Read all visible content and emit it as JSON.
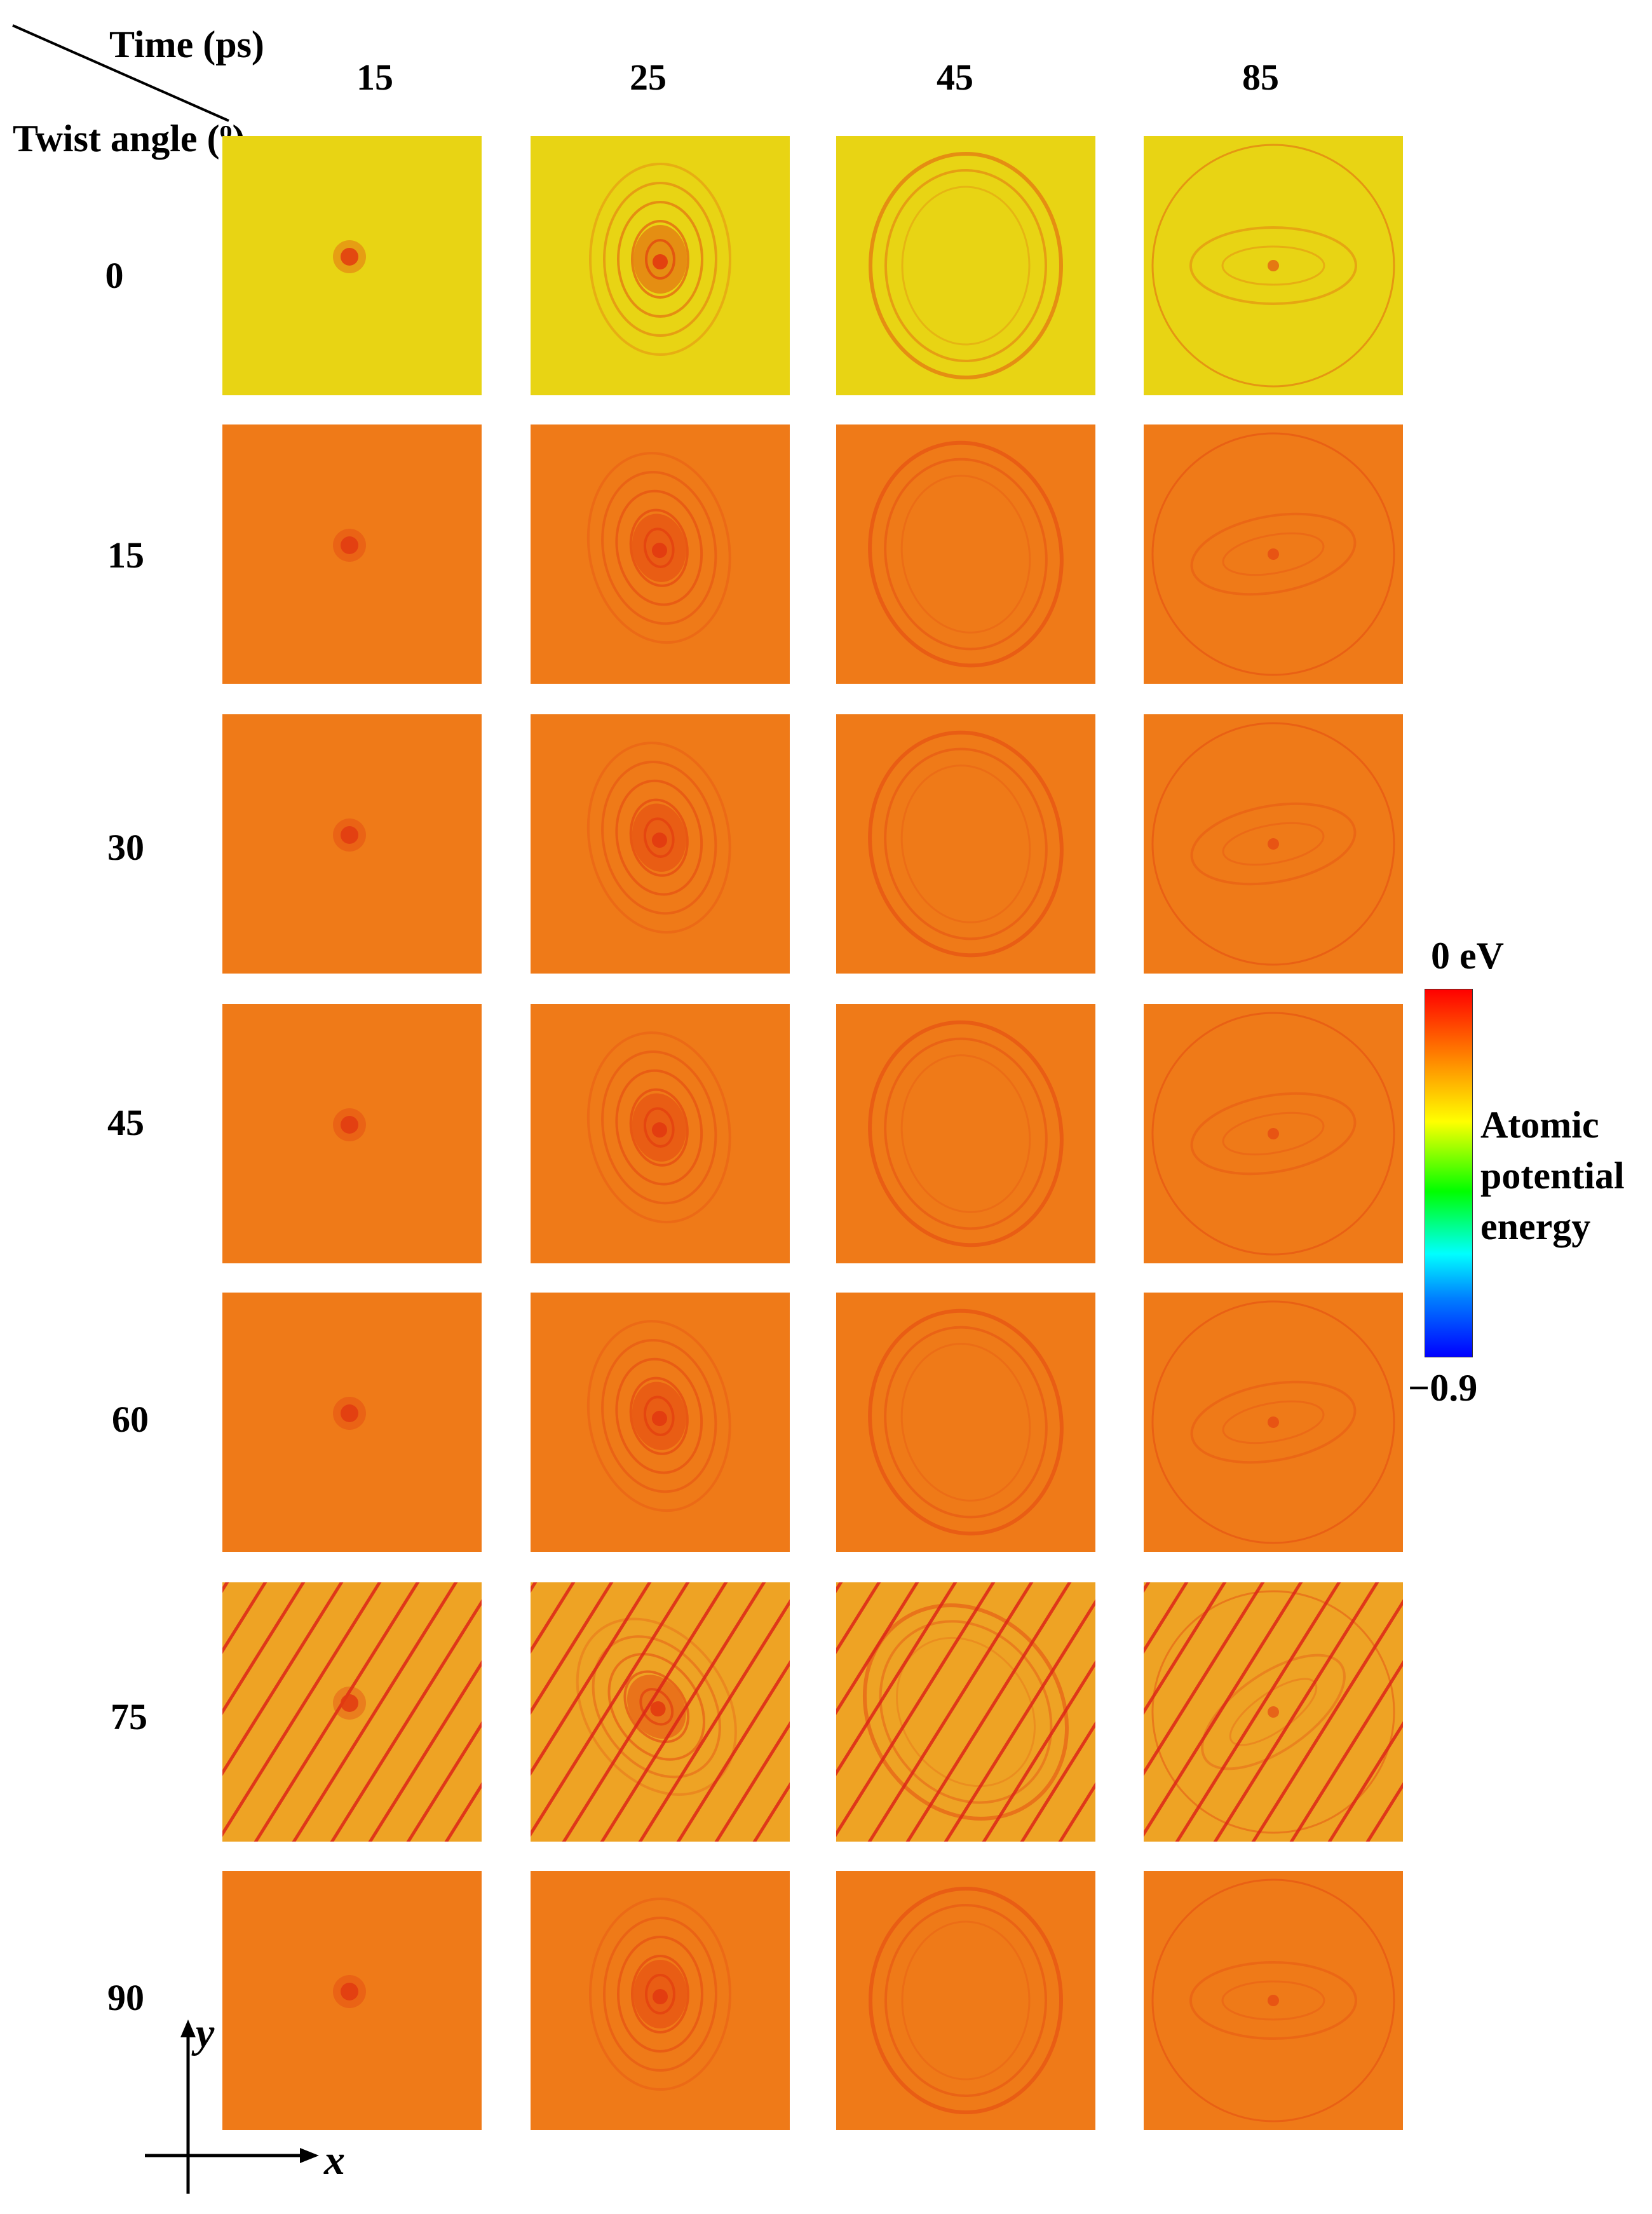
{
  "header": {
    "time_label": "Time (ps)",
    "angle_label": "Twist angle (",
    "angle_unit_sup": "o",
    "angle_label_close": ")"
  },
  "columns": [
    "15",
    "25",
    "45",
    "85"
  ],
  "rows": [
    "0",
    "15",
    "30",
    "45",
    "60",
    "75",
    "90"
  ],
  "colorbar": {
    "max_label": "0 eV",
    "min_label": "−0.9",
    "title": "Atomic potential energy",
    "max_value": 0,
    "min_value": -0.9,
    "colors": [
      "#ff0000",
      "#ff8000",
      "#ffff00",
      "#00ff00",
      "#00ffff",
      "#0080ff",
      "#0000ff"
    ]
  },
  "axes": {
    "y_label": "y",
    "x_label": "x"
  },
  "colors": {
    "row_0_bg": "#e8d414",
    "row_bg": "#ef7a18",
    "row_75_bg": "#eea324",
    "wave": "#e23a10",
    "stripe": "#dc2418"
  }
}
